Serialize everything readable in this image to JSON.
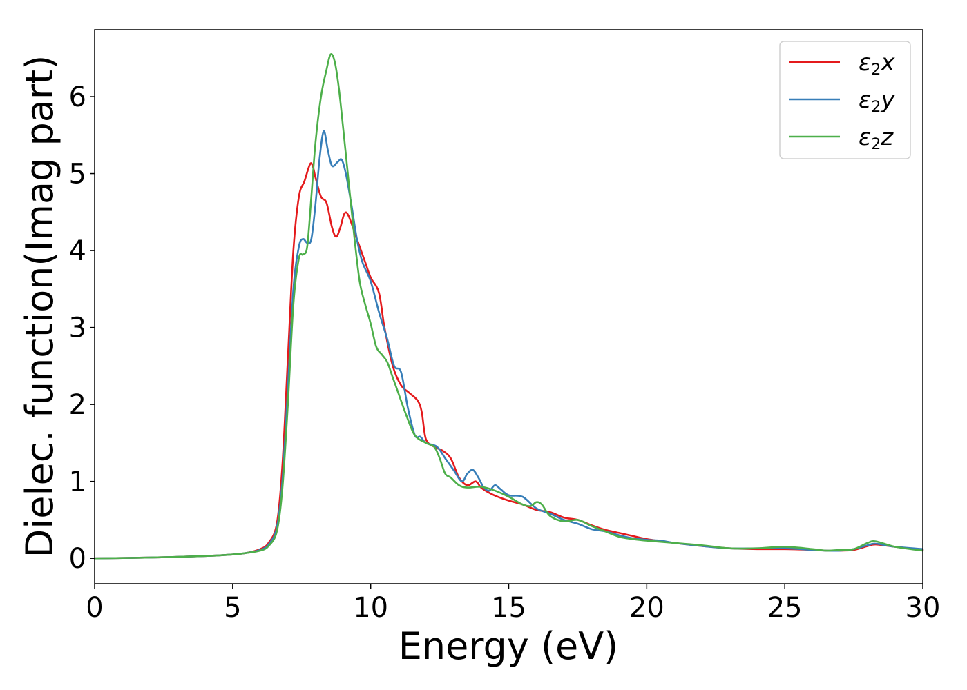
{
  "chart_data": {
    "type": "line",
    "xlabel": "Energy (eV)",
    "ylabel": "Dielec. function(Imag part)",
    "xlim": [
      0,
      30
    ],
    "ylim": [
      -0.33,
      6.87
    ],
    "xticks": [
      0,
      5,
      10,
      15,
      20,
      25,
      30
    ],
    "yticks": [
      0,
      1,
      2,
      3,
      4,
      5,
      6
    ],
    "grid": false,
    "legend_position": "top-right",
    "series": [
      {
        "name": "ε2x",
        "legend_base": "ε",
        "legend_sub": "2",
        "legend_tail": "x",
        "color": "#e41a1c",
        "points": [
          [
            0,
            0
          ],
          [
            2,
            0.01
          ],
          [
            4,
            0.03
          ],
          [
            5,
            0.05
          ],
          [
            5.5,
            0.07
          ],
          [
            6,
            0.12
          ],
          [
            6.3,
            0.2
          ],
          [
            6.6,
            0.45
          ],
          [
            6.8,
            1.2
          ],
          [
            7.0,
            2.6
          ],
          [
            7.2,
            4.0
          ],
          [
            7.4,
            4.7
          ],
          [
            7.6,
            4.9
          ],
          [
            7.8,
            5.12
          ],
          [
            7.9,
            5.1
          ],
          [
            8.0,
            4.95
          ],
          [
            8.2,
            4.7
          ],
          [
            8.4,
            4.62
          ],
          [
            8.6,
            4.3
          ],
          [
            8.75,
            4.18
          ],
          [
            8.9,
            4.3
          ],
          [
            9.05,
            4.48
          ],
          [
            9.2,
            4.45
          ],
          [
            9.5,
            4.15
          ],
          [
            9.8,
            3.85
          ],
          [
            10.0,
            3.65
          ],
          [
            10.3,
            3.45
          ],
          [
            10.5,
            3.0
          ],
          [
            10.8,
            2.5
          ],
          [
            11.1,
            2.25
          ],
          [
            11.4,
            2.15
          ],
          [
            11.7,
            2.05
          ],
          [
            11.85,
            1.9
          ],
          [
            12.0,
            1.55
          ],
          [
            12.3,
            1.45
          ],
          [
            12.6,
            1.4
          ],
          [
            12.9,
            1.3
          ],
          [
            13.2,
            1.05
          ],
          [
            13.5,
            0.95
          ],
          [
            13.8,
            1.0
          ],
          [
            14.0,
            0.92
          ],
          [
            14.3,
            0.85
          ],
          [
            14.6,
            0.8
          ],
          [
            15.0,
            0.75
          ],
          [
            15.5,
            0.7
          ],
          [
            16.0,
            0.63
          ],
          [
            16.5,
            0.6
          ],
          [
            17.0,
            0.53
          ],
          [
            17.5,
            0.5
          ],
          [
            18.0,
            0.43
          ],
          [
            18.5,
            0.37
          ],
          [
            19.0,
            0.33
          ],
          [
            19.5,
            0.29
          ],
          [
            20.0,
            0.25
          ],
          [
            21.0,
            0.2
          ],
          [
            22.0,
            0.16
          ],
          [
            23.0,
            0.13
          ],
          [
            24.0,
            0.12
          ],
          [
            25.0,
            0.12
          ],
          [
            26.0,
            0.11
          ],
          [
            26.5,
            0.1
          ],
          [
            27.0,
            0.1
          ],
          [
            27.5,
            0.11
          ],
          [
            28.0,
            0.16
          ],
          [
            28.3,
            0.18
          ],
          [
            29.0,
            0.15
          ],
          [
            30.0,
            0.11
          ]
        ]
      },
      {
        "name": "ε2y",
        "legend_base": "ε",
        "legend_sub": "2",
        "legend_tail": "y",
        "color": "#377eb8",
        "points": [
          [
            0,
            0
          ],
          [
            2,
            0.01
          ],
          [
            4,
            0.03
          ],
          [
            5,
            0.05
          ],
          [
            5.5,
            0.07
          ],
          [
            6,
            0.11
          ],
          [
            6.3,
            0.18
          ],
          [
            6.6,
            0.4
          ],
          [
            6.8,
            1.0
          ],
          [
            7.0,
            2.2
          ],
          [
            7.2,
            3.5
          ],
          [
            7.4,
            4.05
          ],
          [
            7.55,
            4.15
          ],
          [
            7.7,
            4.1
          ],
          [
            7.85,
            4.15
          ],
          [
            8.0,
            4.6
          ],
          [
            8.15,
            5.2
          ],
          [
            8.3,
            5.55
          ],
          [
            8.45,
            5.3
          ],
          [
            8.6,
            5.1
          ],
          [
            8.8,
            5.15
          ],
          [
            8.95,
            5.18
          ],
          [
            9.1,
            5.0
          ],
          [
            9.3,
            4.6
          ],
          [
            9.5,
            4.15
          ],
          [
            9.7,
            3.85
          ],
          [
            10.0,
            3.6
          ],
          [
            10.3,
            3.2
          ],
          [
            10.6,
            2.85
          ],
          [
            10.85,
            2.5
          ],
          [
            11.1,
            2.42
          ],
          [
            11.35,
            1.95
          ],
          [
            11.6,
            1.6
          ],
          [
            11.8,
            1.58
          ],
          [
            12.0,
            1.5
          ],
          [
            12.4,
            1.45
          ],
          [
            12.7,
            1.3
          ],
          [
            13.0,
            1.15
          ],
          [
            13.3,
            1.0
          ],
          [
            13.5,
            1.1
          ],
          [
            13.7,
            1.15
          ],
          [
            13.9,
            1.05
          ],
          [
            14.1,
            0.92
          ],
          [
            14.3,
            0.88
          ],
          [
            14.5,
            0.95
          ],
          [
            14.7,
            0.9
          ],
          [
            15.0,
            0.82
          ],
          [
            15.5,
            0.8
          ],
          [
            16.0,
            0.65
          ],
          [
            16.5,
            0.58
          ],
          [
            17.0,
            0.5
          ],
          [
            17.5,
            0.45
          ],
          [
            18.0,
            0.38
          ],
          [
            18.5,
            0.35
          ],
          [
            19.0,
            0.3
          ],
          [
            19.5,
            0.26
          ],
          [
            20.0,
            0.24
          ],
          [
            20.5,
            0.23
          ],
          [
            21.0,
            0.2
          ],
          [
            22.0,
            0.16
          ],
          [
            23.0,
            0.13
          ],
          [
            24.0,
            0.13
          ],
          [
            25.0,
            0.13
          ],
          [
            26.0,
            0.11
          ],
          [
            26.5,
            0.1
          ],
          [
            27.0,
            0.1
          ],
          [
            27.5,
            0.12
          ],
          [
            28.0,
            0.17
          ],
          [
            28.3,
            0.19
          ],
          [
            29.0,
            0.15
          ],
          [
            30.0,
            0.12
          ]
        ]
      },
      {
        "name": "ε2z",
        "legend_base": "ε",
        "legend_sub": "2",
        "legend_tail": "z",
        "color": "#4daf4a",
        "points": [
          [
            0,
            0
          ],
          [
            2,
            0.01
          ],
          [
            4,
            0.03
          ],
          [
            5,
            0.05
          ],
          [
            5.5,
            0.07
          ],
          [
            6,
            0.1
          ],
          [
            6.3,
            0.16
          ],
          [
            6.6,
            0.35
          ],
          [
            6.8,
            0.9
          ],
          [
            7.0,
            2.0
          ],
          [
            7.2,
            3.3
          ],
          [
            7.4,
            3.9
          ],
          [
            7.55,
            3.95
          ],
          [
            7.7,
            4.05
          ],
          [
            7.85,
            4.7
          ],
          [
            8.0,
            5.4
          ],
          [
            8.2,
            6.0
          ],
          [
            8.4,
            6.35
          ],
          [
            8.55,
            6.55
          ],
          [
            8.7,
            6.45
          ],
          [
            8.85,
            6.1
          ],
          [
            9.0,
            5.6
          ],
          [
            9.2,
            4.9
          ],
          [
            9.4,
            4.2
          ],
          [
            9.6,
            3.6
          ],
          [
            9.8,
            3.3
          ],
          [
            10.0,
            3.05
          ],
          [
            10.2,
            2.75
          ],
          [
            10.4,
            2.65
          ],
          [
            10.6,
            2.55
          ],
          [
            10.8,
            2.35
          ],
          [
            11.0,
            2.15
          ],
          [
            11.3,
            1.85
          ],
          [
            11.6,
            1.6
          ],
          [
            12.0,
            1.5
          ],
          [
            12.3,
            1.45
          ],
          [
            12.5,
            1.3
          ],
          [
            12.7,
            1.1
          ],
          [
            12.9,
            1.05
          ],
          [
            13.2,
            0.95
          ],
          [
            13.5,
            0.92
          ],
          [
            14.0,
            0.93
          ],
          [
            14.5,
            0.88
          ],
          [
            15.0,
            0.8
          ],
          [
            15.5,
            0.7
          ],
          [
            15.8,
            0.68
          ],
          [
            16.0,
            0.73
          ],
          [
            16.2,
            0.7
          ],
          [
            16.5,
            0.55
          ],
          [
            17.0,
            0.48
          ],
          [
            17.5,
            0.5
          ],
          [
            18.0,
            0.42
          ],
          [
            18.5,
            0.35
          ],
          [
            19.0,
            0.28
          ],
          [
            19.5,
            0.25
          ],
          [
            20.0,
            0.23
          ],
          [
            21.0,
            0.2
          ],
          [
            22.0,
            0.17
          ],
          [
            23.0,
            0.13
          ],
          [
            24.0,
            0.13
          ],
          [
            25.0,
            0.15
          ],
          [
            26.0,
            0.12
          ],
          [
            26.5,
            0.1
          ],
          [
            27.0,
            0.11
          ],
          [
            27.5,
            0.12
          ],
          [
            28.0,
            0.2
          ],
          [
            28.3,
            0.22
          ],
          [
            29.0,
            0.15
          ],
          [
            30.0,
            0.1
          ]
        ]
      }
    ]
  }
}
